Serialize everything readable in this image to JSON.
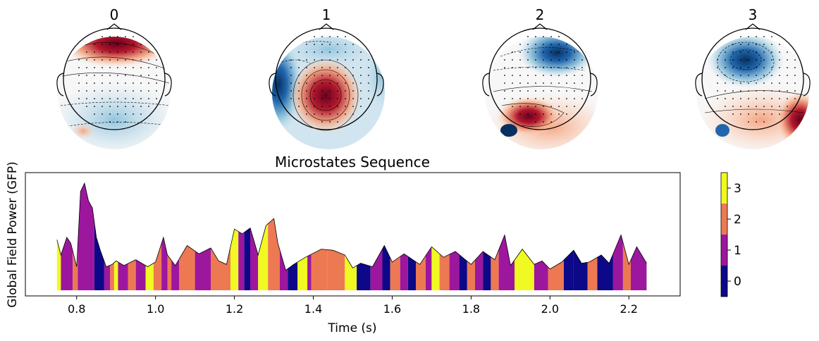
{
  "topomaps": [
    {
      "label": "0",
      "pattern": "frontal-positive"
    },
    {
      "label": "1",
      "pattern": "central-positive"
    },
    {
      "label": "2",
      "pattern": "frontal-negative"
    },
    {
      "label": "3",
      "pattern": "frontal-left-negative"
    }
  ],
  "colors": {
    "state_0": "#0d0887",
    "state_1": "#9c179e",
    "state_2": "#ed7953",
    "state_3": "#f0f921",
    "topo_red": "#b2182b",
    "topo_blue": "#2166ac"
  },
  "chart_data": {
    "type": "area",
    "title": "Microstates Sequence",
    "xlabel": "Time (s)",
    "ylabel": "Global Field Power (GFP)",
    "xlim": [
      0.67,
      2.33
    ],
    "ylim": [
      0,
      1
    ],
    "xticks": [
      0.8,
      1.0,
      1.2,
      1.4,
      1.6,
      1.8,
      2.0,
      2.2
    ],
    "xtick_labels": [
      "0.8",
      "1.0",
      "1.2",
      "1.4",
      "1.6",
      "1.8",
      "2.0",
      "2.2"
    ],
    "gfp": {
      "t": [
        0.75,
        0.76,
        0.775,
        0.785,
        0.8,
        0.81,
        0.82,
        0.83,
        0.84,
        0.85,
        0.86,
        0.875,
        0.89,
        0.9,
        0.92,
        0.95,
        0.98,
        1.0,
        1.02,
        1.03,
        1.05,
        1.08,
        1.11,
        1.14,
        1.16,
        1.18,
        1.2,
        1.22,
        1.24,
        1.26,
        1.28,
        1.3,
        1.31,
        1.33,
        1.35,
        1.38,
        1.42,
        1.45,
        1.48,
        1.5,
        1.52,
        1.55,
        1.58,
        1.6,
        1.63,
        1.67,
        1.7,
        1.73,
        1.76,
        1.8,
        1.83,
        1.86,
        1.885,
        1.9,
        1.93,
        1.96,
        1.98,
        2.0,
        2.03,
        2.06,
        2.08,
        2.1,
        2.13,
        2.15,
        2.18,
        2.2,
        2.22,
        2.245
      ],
      "v": [
        0.43,
        0.3,
        0.45,
        0.4,
        0.2,
        0.84,
        0.91,
        0.76,
        0.7,
        0.45,
        0.34,
        0.2,
        0.22,
        0.25,
        0.21,
        0.26,
        0.2,
        0.24,
        0.45,
        0.3,
        0.21,
        0.38,
        0.31,
        0.36,
        0.25,
        0.22,
        0.52,
        0.48,
        0.53,
        0.3,
        0.55,
        0.61,
        0.4,
        0.17,
        0.22,
        0.28,
        0.35,
        0.34,
        0.3,
        0.19,
        0.23,
        0.2,
        0.38,
        0.24,
        0.31,
        0.22,
        0.37,
        0.28,
        0.33,
        0.22,
        0.33,
        0.26,
        0.47,
        0.21,
        0.35,
        0.22,
        0.25,
        0.18,
        0.24,
        0.34,
        0.23,
        0.24,
        0.3,
        0.23,
        0.47,
        0.22,
        0.37,
        0.23
      ]
    },
    "segments": [
      [
        0.75,
        0.76,
        3
      ],
      [
        0.76,
        0.79,
        1
      ],
      [
        0.79,
        0.803,
        2
      ],
      [
        0.803,
        0.845,
        1
      ],
      [
        0.845,
        0.87,
        0
      ],
      [
        0.87,
        0.885,
        1
      ],
      [
        0.885,
        0.895,
        2
      ],
      [
        0.895,
        0.905,
        3
      ],
      [
        0.905,
        0.93,
        1
      ],
      [
        0.93,
        0.95,
        2
      ],
      [
        0.95,
        0.975,
        1
      ],
      [
        0.975,
        0.995,
        3
      ],
      [
        0.995,
        1.015,
        2
      ],
      [
        1.015,
        1.03,
        1
      ],
      [
        1.03,
        1.04,
        2
      ],
      [
        1.04,
        1.06,
        1
      ],
      [
        1.06,
        1.1,
        2
      ],
      [
        1.1,
        1.14,
        1
      ],
      [
        1.14,
        1.19,
        2
      ],
      [
        1.19,
        1.21,
        3
      ],
      [
        1.21,
        1.225,
        1
      ],
      [
        1.225,
        1.24,
        0
      ],
      [
        1.24,
        1.26,
        1
      ],
      [
        1.26,
        1.285,
        3
      ],
      [
        1.285,
        1.315,
        2
      ],
      [
        1.315,
        1.335,
        1
      ],
      [
        1.335,
        1.36,
        0
      ],
      [
        1.36,
        1.385,
        3
      ],
      [
        1.385,
        1.395,
        1
      ],
      [
        1.395,
        1.435,
        2
      ],
      [
        1.435,
        1.48,
        2
      ],
      [
        1.48,
        1.51,
        3
      ],
      [
        1.51,
        1.545,
        0
      ],
      [
        1.545,
        1.575,
        1
      ],
      [
        1.575,
        1.595,
        0
      ],
      [
        1.595,
        1.62,
        2
      ],
      [
        1.62,
        1.64,
        1
      ],
      [
        1.64,
        1.66,
        0
      ],
      [
        1.66,
        1.685,
        2
      ],
      [
        1.685,
        1.7,
        1
      ],
      [
        1.7,
        1.72,
        3
      ],
      [
        1.72,
        1.745,
        2
      ],
      [
        1.745,
        1.77,
        1
      ],
      [
        1.77,
        1.79,
        0
      ],
      [
        1.79,
        1.81,
        2
      ],
      [
        1.81,
        1.83,
        1
      ],
      [
        1.83,
        1.85,
        0
      ],
      [
        1.85,
        1.87,
        2
      ],
      [
        1.87,
        1.91,
        1
      ],
      [
        1.91,
        1.96,
        3
      ],
      [
        1.96,
        1.995,
        1
      ],
      [
        1.995,
        2.035,
        2
      ],
      [
        2.035,
        2.06,
        0
      ],
      [
        2.06,
        2.095,
        0
      ],
      [
        2.095,
        2.12,
        2
      ],
      [
        2.12,
        2.16,
        0
      ],
      [
        2.16,
        2.185,
        1
      ],
      [
        2.185,
        2.205,
        2
      ],
      [
        2.205,
        2.245,
        1
      ]
    ],
    "colorbar": {
      "ticks": [
        0,
        1,
        2,
        3
      ],
      "tick_labels": [
        "0",
        "1",
        "2",
        "3"
      ]
    }
  }
}
